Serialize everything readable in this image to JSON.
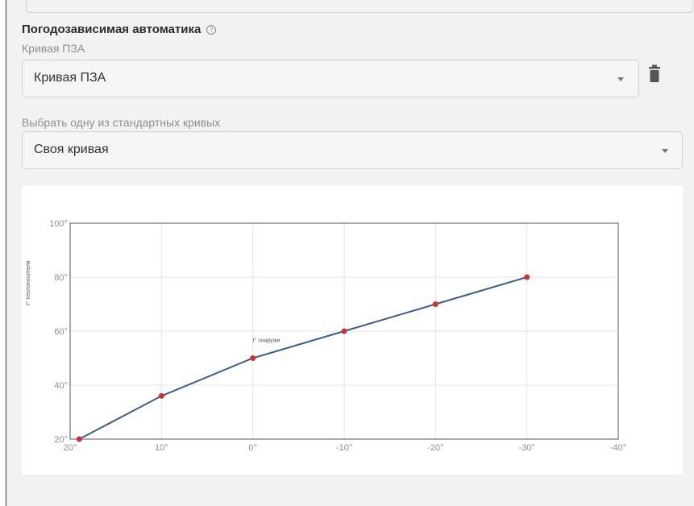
{
  "section": {
    "title": "Погодозависимая автоматика",
    "help_icon": "question-circle-icon"
  },
  "curve_field": {
    "label": "Кривая ПЗА",
    "value": "Кривая ПЗА",
    "delete_icon": "trash-icon"
  },
  "standard_field": {
    "label": "Выбрать одну из стандартных кривых",
    "value": "Своя кривая"
  },
  "colors": {
    "line": "#3b5f8a",
    "point": "#cc3333",
    "grid": "#e3e3e3",
    "axis": "#555555"
  },
  "chart_data": {
    "type": "line",
    "xlabel": "t° снаружи",
    "ylabel": "t° теплоносителя",
    "x_ticks": [
      "20°",
      "10°",
      "0°",
      "-10°",
      "-20°",
      "-30°",
      "-40°"
    ],
    "y_ticks": [
      "20°",
      "40°",
      "60°",
      "80°",
      "100°"
    ],
    "xlim": [
      20,
      -40
    ],
    "ylim": [
      20,
      100
    ],
    "grid": true,
    "series": [
      {
        "x": [
          19,
          10,
          0,
          -10,
          -20,
          -30
        ],
        "y": [
          20,
          36,
          50,
          60,
          70,
          80
        ]
      }
    ]
  }
}
